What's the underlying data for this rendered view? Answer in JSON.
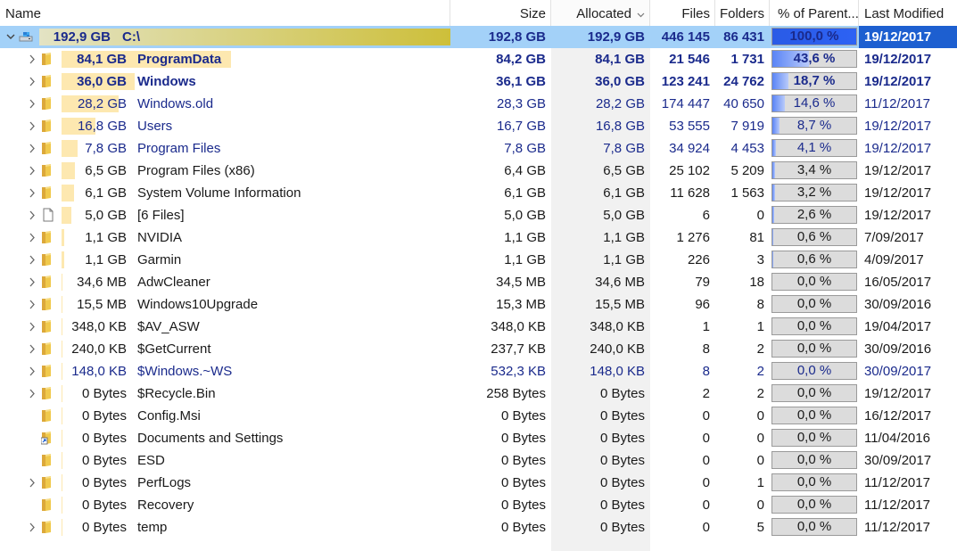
{
  "columns": {
    "name": "Name",
    "size": "Size",
    "allocated": "Allocated",
    "files": "Files",
    "folders": "Folders",
    "percent": "% of Parent...",
    "modified": "Last Modified"
  },
  "colors": {
    "selected_row": "#a3d1f8",
    "root_bar": "#cdbf3a",
    "name_bar": "#fde8b0",
    "percent_fill": "#2d62f4",
    "blue_text": "#1a2a8c"
  },
  "rows": [
    {
      "level": 0,
      "icon": "drive-icon",
      "expander": "expanded",
      "name_size": "192,9 GB",
      "name": "C:\\",
      "size": "192,8 GB",
      "allocated": "192,9 GB",
      "files": "446 145",
      "folders": "86 431",
      "percent": "100,0 %",
      "pct": 100.0,
      "modified": "19/12/2017",
      "style": "sel"
    },
    {
      "level": 1,
      "icon": "folder-icon",
      "expander": "collapsed",
      "name_size": "84,1 GB",
      "name": "ProgramData",
      "size": "84,2 GB",
      "allocated": "84,1 GB",
      "files": "21 546",
      "folders": "1 731",
      "percent": "43,6 %",
      "pct": 43.6,
      "modified": "19/12/2017",
      "style": "top"
    },
    {
      "level": 1,
      "icon": "folder-icon",
      "expander": "collapsed",
      "name_size": "36,0 GB",
      "name": "Windows",
      "size": "36,1 GB",
      "allocated": "36,0 GB",
      "files": "123 241",
      "folders": "24 762",
      "percent": "18,7 %",
      "pct": 18.7,
      "modified": "19/12/2017",
      "style": "top"
    },
    {
      "level": 1,
      "icon": "folder-icon",
      "expander": "collapsed",
      "name_size": "28,2 GB",
      "name": "Windows.old",
      "size": "28,3 GB",
      "allocated": "28,2 GB",
      "files": "174 447",
      "folders": "40 650",
      "percent": "14,6 %",
      "pct": 14.6,
      "modified": "11/12/2017",
      "style": "blue"
    },
    {
      "level": 1,
      "icon": "folder-icon",
      "expander": "collapsed",
      "name_size": "16,8 GB",
      "name": "Users",
      "size": "16,7 GB",
      "allocated": "16,8 GB",
      "files": "53 555",
      "folders": "7 919",
      "percent": "8,7 %",
      "pct": 8.7,
      "modified": "19/12/2017",
      "style": "blue"
    },
    {
      "level": 1,
      "icon": "folder-icon",
      "expander": "collapsed",
      "name_size": "7,8 GB",
      "name": "Program Files",
      "size": "7,8 GB",
      "allocated": "7,8 GB",
      "files": "34 924",
      "folders": "4 453",
      "percent": "4,1 %",
      "pct": 4.1,
      "modified": "19/12/2017",
      "style": "blue"
    },
    {
      "level": 1,
      "icon": "folder-icon",
      "expander": "collapsed",
      "name_size": "6,5 GB",
      "name": "Program Files (x86)",
      "size": "6,4 GB",
      "allocated": "6,5 GB",
      "files": "25 102",
      "folders": "5 209",
      "percent": "3,4 %",
      "pct": 3.4,
      "modified": "19/12/2017",
      "style": ""
    },
    {
      "level": 1,
      "icon": "folder-icon",
      "expander": "collapsed",
      "name_size": "6,1 GB",
      "name": "System Volume Information",
      "size": "6,1 GB",
      "allocated": "6,1 GB",
      "files": "11 628",
      "folders": "1 563",
      "percent": "3,2 %",
      "pct": 3.2,
      "modified": "19/12/2017",
      "style": ""
    },
    {
      "level": 1,
      "icon": "file-icon",
      "expander": "collapsed",
      "name_size": "5,0 GB",
      "name": "[6 Files]",
      "size": "5,0 GB",
      "allocated": "5,0 GB",
      "files": "6",
      "folders": "0",
      "percent": "2,6 %",
      "pct": 2.6,
      "modified": "19/12/2017",
      "style": ""
    },
    {
      "level": 1,
      "icon": "folder-icon",
      "expander": "collapsed",
      "name_size": "1,1 GB",
      "name": "NVIDIA",
      "size": "1,1 GB",
      "allocated": "1,1 GB",
      "files": "1 276",
      "folders": "81",
      "percent": "0,6 %",
      "pct": 0.6,
      "modified": "7/09/2017",
      "style": ""
    },
    {
      "level": 1,
      "icon": "folder-icon",
      "expander": "collapsed",
      "name_size": "1,1 GB",
      "name": "Garmin",
      "size": "1,1 GB",
      "allocated": "1,1 GB",
      "files": "226",
      "folders": "3",
      "percent": "0,6 %",
      "pct": 0.6,
      "modified": "4/09/2017",
      "style": ""
    },
    {
      "level": 1,
      "icon": "folder-icon",
      "expander": "collapsed",
      "name_size": "34,6 MB",
      "name": "AdwCleaner",
      "size": "34,5 MB",
      "allocated": "34,6 MB",
      "files": "79",
      "folders": "18",
      "percent": "0,0 %",
      "pct": 0.0,
      "modified": "16/05/2017",
      "style": ""
    },
    {
      "level": 1,
      "icon": "folder-icon",
      "expander": "collapsed",
      "name_size": "15,5 MB",
      "name": "Windows10Upgrade",
      "size": "15,3 MB",
      "allocated": "15,5 MB",
      "files": "96",
      "folders": "8",
      "percent": "0,0 %",
      "pct": 0.0,
      "modified": "30/09/2016",
      "style": ""
    },
    {
      "level": 1,
      "icon": "folder-icon",
      "expander": "collapsed",
      "name_size": "348,0 KB",
      "name": "$AV_ASW",
      "size": "348,0 KB",
      "allocated": "348,0 KB",
      "files": "1",
      "folders": "1",
      "percent": "0,0 %",
      "pct": 0.0,
      "modified": "19/04/2017",
      "style": ""
    },
    {
      "level": 1,
      "icon": "folder-icon",
      "expander": "collapsed",
      "name_size": "240,0 KB",
      "name": "$GetCurrent",
      "size": "237,7 KB",
      "allocated": "240,0 KB",
      "files": "8",
      "folders": "2",
      "percent": "0,0 %",
      "pct": 0.0,
      "modified": "30/09/2016",
      "style": ""
    },
    {
      "level": 1,
      "icon": "folder-icon",
      "expander": "collapsed",
      "name_size": "148,0 KB",
      "name": "$Windows.~WS",
      "size": "532,3 KB",
      "allocated": "148,0 KB",
      "files": "8",
      "folders": "2",
      "percent": "0,0 %",
      "pct": 0.0,
      "modified": "30/09/2017",
      "style": "blue"
    },
    {
      "level": 1,
      "icon": "folder-icon",
      "expander": "collapsed",
      "name_size": "0 Bytes",
      "name": "$Recycle.Bin",
      "size": "258 Bytes",
      "allocated": "0 Bytes",
      "files": "2",
      "folders": "2",
      "percent": "0,0 %",
      "pct": 0.0,
      "modified": "19/12/2017",
      "style": ""
    },
    {
      "level": 1,
      "icon": "folder-icon",
      "expander": "none",
      "name_size": "0 Bytes",
      "name": "Config.Msi",
      "size": "0 Bytes",
      "allocated": "0 Bytes",
      "files": "0",
      "folders": "0",
      "percent": "0,0 %",
      "pct": 0.0,
      "modified": "16/12/2017",
      "style": ""
    },
    {
      "level": 1,
      "icon": "shortcut-folder-icon",
      "expander": "none",
      "name_size": "0 Bytes",
      "name": "Documents and Settings",
      "size": "0 Bytes",
      "allocated": "0 Bytes",
      "files": "0",
      "folders": "0",
      "percent": "0,0 %",
      "pct": 0.0,
      "modified": "11/04/2016",
      "style": ""
    },
    {
      "level": 1,
      "icon": "folder-icon",
      "expander": "none",
      "name_size": "0 Bytes",
      "name": "ESD",
      "size": "0 Bytes",
      "allocated": "0 Bytes",
      "files": "0",
      "folders": "0",
      "percent": "0,0 %",
      "pct": 0.0,
      "modified": "30/09/2017",
      "style": ""
    },
    {
      "level": 1,
      "icon": "folder-icon",
      "expander": "collapsed",
      "name_size": "0 Bytes",
      "name": "PerfLogs",
      "size": "0 Bytes",
      "allocated": "0 Bytes",
      "files": "0",
      "folders": "1",
      "percent": "0,0 %",
      "pct": 0.0,
      "modified": "11/12/2017",
      "style": ""
    },
    {
      "level": 1,
      "icon": "folder-icon",
      "expander": "none",
      "name_size": "0 Bytes",
      "name": "Recovery",
      "size": "0 Bytes",
      "allocated": "0 Bytes",
      "files": "0",
      "folders": "0",
      "percent": "0,0 %",
      "pct": 0.0,
      "modified": "11/12/2017",
      "style": ""
    },
    {
      "level": 1,
      "icon": "folder-icon",
      "expander": "collapsed",
      "name_size": "0 Bytes",
      "name": "temp",
      "size": "0 Bytes",
      "allocated": "0 Bytes",
      "files": "0",
      "folders": "5",
      "percent": "0,0 %",
      "pct": 0.0,
      "modified": "11/12/2017",
      "style": ""
    }
  ]
}
